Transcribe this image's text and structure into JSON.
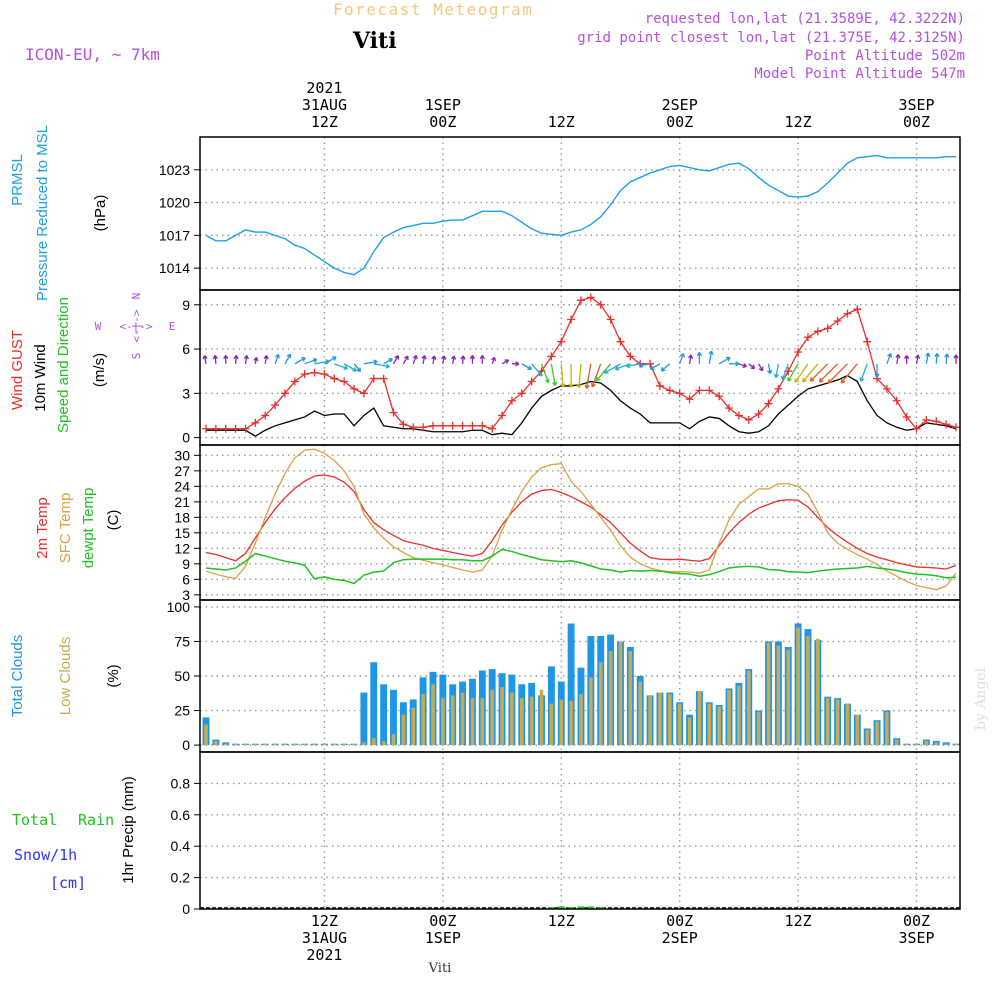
{
  "header": {
    "title": "Forecast Meteogram",
    "location": "Viti",
    "model": "ICON-EU, ~ 7km",
    "requested": "requested lon,lat (21.3589E, 42.3222N)",
    "gridpoint": "grid point closest lon,lat (21.375E, 42.3125N)",
    "point_alt": "Point Altitude 502m",
    "model_alt": "Model Point Altitude 547m",
    "footer_location": "Viti",
    "watermark": "by Angel"
  },
  "time_axis": {
    "top": [
      {
        "t": 12,
        "lines": [
          "2021",
          "31AUG",
          "12Z"
        ]
      },
      {
        "t": 24,
        "lines": [
          "1SEP",
          "00Z"
        ]
      },
      {
        "t": 36,
        "lines": [
          "12Z"
        ]
      },
      {
        "t": 48,
        "lines": [
          "2SEP",
          "00Z"
        ]
      },
      {
        "t": 60,
        "lines": [
          "12Z"
        ]
      },
      {
        "t": 72,
        "lines": [
          "3SEP",
          "00Z"
        ]
      }
    ],
    "bottom": [
      {
        "t": 12,
        "lines": [
          "12Z",
          "31AUG",
          "2021"
        ]
      },
      {
        "t": 24,
        "lines": [
          "00Z",
          "1SEP"
        ]
      },
      {
        "t": 36,
        "lines": [
          "12Z"
        ]
      },
      {
        "t": 48,
        "lines": [
          "00Z",
          "2SEP"
        ]
      },
      {
        "t": 60,
        "lines": [
          "12Z"
        ]
      },
      {
        "t": 72,
        "lines": [
          "00Z",
          "3SEP"
        ]
      }
    ]
  },
  "panels": {
    "pressure": {
      "label1": "PRMSL",
      "label2": "Pressure Reduced to MSL",
      "unit": "(hPa)",
      "ticks": [
        "1014",
        "1017",
        "1020",
        "1023"
      ]
    },
    "wind": {
      "label_gust": "Wind GUST",
      "label_10m": "10m Wind",
      "label_dir": "Speed and Direction",
      "unit": "(m/s)",
      "ticks": [
        "0",
        "3",
        "6",
        "9"
      ],
      "compass_n": "N",
      "compass_s": "S",
      "compass_w": "W",
      "compass_e": "E",
      "compass_arrow": "<-|->"
    },
    "temp": {
      "label1": "2m Temp",
      "label2": "SFC Temp",
      "label3": "dewpt Temp",
      "unit": "(C)",
      "ticks": [
        "3",
        "6",
        "9",
        "12",
        "15",
        "18",
        "21",
        "24",
        "27",
        "30"
      ]
    },
    "clouds": {
      "label1": "Total Clouds",
      "label2": "Low Clouds",
      "unit": "(%)",
      "ticks": [
        "0",
        "25",
        "50",
        "75",
        "100"
      ]
    },
    "precip": {
      "label1": "Total",
      "label1b": "Rain",
      "label2": "Snow/1h",
      "label3": "[cm]",
      "unit": "1hr Precip (mm)",
      "ticks": [
        "0",
        "0.2",
        "0.4",
        "0.6",
        "0.8"
      ]
    }
  },
  "colors": {
    "pressure": "#1ea0e6",
    "gust": "#e8302a",
    "wind": "#000000",
    "temp2m": "#e8302a",
    "sfc": "#dca040",
    "dewpt": "#22c022",
    "total_clouds": "#1e96e6",
    "low_clouds": "#c8aa50",
    "rain": "#22c022",
    "snow": "#3030ff",
    "purple": "#b450dc",
    "title": "#f0c880"
  },
  "chart_data": {
    "type": "line",
    "x": [
      0,
      1,
      2,
      3,
      4,
      5,
      6,
      7,
      8,
      9,
      10,
      11,
      12,
      13,
      14,
      15,
      16,
      17,
      18,
      19,
      20,
      21,
      22,
      23,
      24,
      25,
      26,
      27,
      28,
      29,
      30,
      31,
      32,
      33,
      34,
      35,
      36,
      37,
      38,
      39,
      40,
      41,
      42,
      43,
      44,
      45,
      46,
      47,
      48,
      49,
      50,
      51,
      52,
      53,
      54,
      55,
      56,
      57,
      58,
      59,
      60,
      61,
      62,
      63,
      64,
      65,
      66,
      67,
      68,
      69,
      70,
      71,
      72,
      73,
      74,
      75,
      76
    ],
    "pressure": [
      1017,
      1016.5,
      1016.5,
      1017,
      1017.5,
      1017.3,
      1017.3,
      1017,
      1016.7,
      1016.1,
      1015.8,
      1015.2,
      1014.6,
      1014,
      1013.6,
      1013.4,
      1014,
      1015.5,
      1016.8,
      1017.3,
      1017.7,
      1017.9,
      1018.1,
      1018.1,
      1018.3,
      1018.4,
      1018.4,
      1018.8,
      1019.2,
      1019.2,
      1019.2,
      1018.8,
      1018.2,
      1017.6,
      1017.2,
      1017.1,
      1017,
      1017.3,
      1017.5,
      1018,
      1018.7,
      1019.8,
      1021.1,
      1021.9,
      1022.3,
      1022.7,
      1023,
      1023.3,
      1023.4,
      1023.2,
      1023,
      1022.9,
      1023.2,
      1023.5,
      1023.6,
      1023.1,
      1022.3,
      1021.6,
      1021.1,
      1020.6,
      1020.5,
      1020.6,
      1021,
      1021.8,
      1022.7,
      1023.6,
      1024.1,
      1024.2,
      1024.3,
      1024.1,
      1024.1,
      1024.1,
      1024.1,
      1024.1,
      1024.1,
      1024.2,
      1024.2
    ],
    "gust": [
      0.6,
      0.6,
      0.6,
      0.6,
      0.6,
      1,
      1.5,
      2.2,
      3,
      3.8,
      4.3,
      4.4,
      4.3,
      4,
      3.8,
      3.3,
      3,
      4,
      4,
      1.7,
      0.9,
      0.7,
      0.7,
      0.8,
      0.8,
      0.8,
      0.8,
      0.8,
      0.8,
      0.6,
      1.5,
      2.5,
      3,
      3.8,
      4.5,
      5.5,
      6.5,
      8,
      9.3,
      9.5,
      9,
      8,
      6.5,
      5.5,
      5,
      5,
      3.5,
      3.2,
      3,
      2.6,
      3.2,
      3.2,
      2.8,
      2,
      1.5,
      1.2,
      1.6,
      2.3,
      3.3,
      4.5,
      5.8,
      6.8,
      7.2,
      7.4,
      7.9,
      8.4,
      8.7,
      6.5,
      4,
      3.3,
      2.5,
      1.4,
      0.6,
      1.2,
      1.1,
      0.9,
      0.7
    ],
    "wind10m": [
      0.5,
      0.5,
      0.5,
      0.5,
      0.5,
      0.1,
      0.5,
      0.8,
      1,
      1.2,
      1.4,
      1.8,
      1.5,
      1.6,
      1.6,
      0.8,
      1.5,
      2,
      0.8,
      0.7,
      0.6,
      0.6,
      0.5,
      0.4,
      0.4,
      0.4,
      0.4,
      0.5,
      0.5,
      0.2,
      0.3,
      0.2,
      1,
      2,
      2.8,
      3.2,
      3.5,
      3.5,
      3.6,
      3.8,
      3.7,
      3.2,
      2.5,
      2,
      1.6,
      1,
      1,
      1,
      1,
      0.6,
      1.1,
      1.4,
      1.3,
      0.8,
      0.4,
      0.3,
      0.4,
      0.8,
      1.6,
      2.2,
      2.8,
      3.3,
      3.5,
      3.7,
      3.9,
      4.2,
      3.8,
      2.5,
      1.5,
      1,
      0.7,
      0.5,
      0.6,
      1,
      0.9,
      0.8,
      0.6
    ],
    "temp2m": [
      11.2,
      10.8,
      10.2,
      9.6,
      11,
      14,
      17,
      19.6,
      21.8,
      23.6,
      25,
      26,
      26.2,
      25.8,
      24.8,
      23,
      19.5,
      17,
      15.6,
      14.5,
      13.5,
      13,
      12.6,
      12,
      11.6,
      11.2,
      10.8,
      10.5,
      11,
      13.5,
      16.5,
      19,
      21,
      22.5,
      23.2,
      23.4,
      22.8,
      22,
      21,
      20,
      18.5,
      17,
      15,
      13,
      11.5,
      10.2,
      9.9,
      9.8,
      9.9,
      9.7,
      9.5,
      10,
      12.5,
      15,
      17,
      18.6,
      19.8,
      20.5,
      21.2,
      21.4,
      21.3,
      20,
      18,
      16,
      14.5,
      13.2,
      12,
      11,
      10.3,
      9.8,
      9.2,
      8.8,
      8.4,
      8.3,
      8.2,
      8,
      8.7
    ],
    "sfc": [
      7.6,
      7,
      6.5,
      6.2,
      8.5,
      13,
      18,
      22.5,
      26.5,
      29.5,
      31,
      31.2,
      30.4,
      29,
      27,
      24,
      18.6,
      16,
      14,
      12.3,
      11.2,
      10.2,
      9.7,
      9.2,
      8.8,
      8.3,
      7.8,
      7.4,
      7.8,
      10.5,
      15.5,
      19.5,
      23,
      25.8,
      27.6,
      28.2,
      28.4,
      25,
      23,
      20.5,
      18,
      15.5,
      12.5,
      10.3,
      9,
      8.2,
      7.7,
      7.5,
      7.5,
      7.4,
      7.2,
      7.8,
      13,
      17.5,
      20.5,
      22,
      23.5,
      23.5,
      24.5,
      24.5,
      24,
      22.5,
      19,
      15,
      13,
      11.8,
      10.8,
      9.9,
      8.9,
      7.6,
      6.6,
      5.6,
      4.8,
      4.4,
      4,
      4.7,
      7.2
    ],
    "dewpt": [
      8.2,
      8,
      7.8,
      8.2,
      9.5,
      11,
      10.5,
      10,
      9.5,
      9.2,
      8.7,
      6.1,
      6.5,
      6,
      5.8,
      5.2,
      6.8,
      7.4,
      7.6,
      9.2,
      9.8,
      9.9,
      9.9,
      9.9,
      9.9,
      9.8,
      9.8,
      9.6,
      9.6,
      10.5,
      11.8,
      11.4,
      10.8,
      10.3,
      9.8,
      9.6,
      9.4,
      9.6,
      9.2,
      8.6,
      8,
      7.8,
      7.4,
      7.7,
      7.6,
      7.7,
      7.6,
      7.3,
      7.1,
      7,
      6.6,
      6.9,
      7.5,
      8.2,
      8.4,
      8.5,
      8.4,
      7.9,
      7.8,
      7.5,
      7.4,
      7.3,
      7.6,
      7.8,
      8,
      8.1,
      8.2,
      8.5,
      8.2,
      8,
      7.7,
      7.3,
      7,
      6.9,
      6.7,
      6.3,
      6.4
    ],
    "total_clouds": [
      20,
      4,
      2,
      1,
      1,
      1,
      1,
      1,
      1,
      1,
      1,
      1,
      1,
      1,
      1,
      1,
      38,
      60,
      44,
      40,
      31,
      33,
      49,
      53,
      51,
      44,
      46,
      48,
      54,
      55,
      52,
      51,
      44,
      45,
      36,
      57,
      46,
      88,
      56,
      79,
      79,
      80,
      75,
      71,
      50,
      36,
      38,
      38,
      31,
      22,
      39,
      31,
      29,
      41,
      45,
      55,
      25,
      75,
      75,
      71,
      88,
      84,
      76,
      35,
      34,
      30,
      22,
      12,
      18,
      25,
      5,
      1,
      1,
      4,
      3,
      2,
      1
    ],
    "low_clouds": [
      15,
      3,
      1,
      1,
      1,
      1,
      1,
      1,
      1,
      1,
      1,
      1,
      1,
      1,
      1,
      1,
      2,
      5,
      3,
      8,
      22,
      27,
      37,
      44,
      34,
      36,
      38,
      34,
      34,
      40,
      42,
      38,
      34,
      35,
      40,
      30,
      33,
      32,
      37,
      49,
      60,
      68,
      75,
      68,
      46,
      36,
      38,
      37,
      30,
      20,
      39,
      30,
      28,
      40,
      43,
      54,
      24,
      74,
      72,
      69,
      85,
      79,
      77,
      34,
      33,
      30,
      22,
      11,
      17,
      24,
      4,
      1,
      1,
      3,
      2,
      1,
      1
    ],
    "rain": [
      0,
      0,
      0,
      0,
      0,
      0,
      0,
      0,
      0,
      0,
      0,
      0,
      0,
      0,
      0,
      0,
      0,
      0,
      0,
      0,
      0,
      0,
      0,
      0,
      0,
      0,
      0,
      0,
      0,
      0,
      0,
      0,
      0,
      0,
      0,
      0.005,
      0.01,
      0.005,
      0.01,
      0.01,
      0.005,
      0,
      0,
      0,
      0,
      0,
      0,
      0,
      0,
      0,
      0,
      0,
      0,
      0,
      0,
      0,
      0,
      0,
      0,
      0,
      0,
      0,
      0,
      0,
      0,
      0,
      0,
      0,
      0,
      0,
      0,
      0,
      0,
      0,
      0,
      0,
      0
    ],
    "ylim_pressure": [
      1012,
      1026
    ],
    "ylim_wind": [
      -0.5,
      10
    ],
    "ylim_temp": [
      2,
      32
    ],
    "ylim_clouds": [
      -5,
      105
    ],
    "ylim_precip": [
      0,
      1
    ],
    "xlim": [
      0,
      76
    ]
  }
}
